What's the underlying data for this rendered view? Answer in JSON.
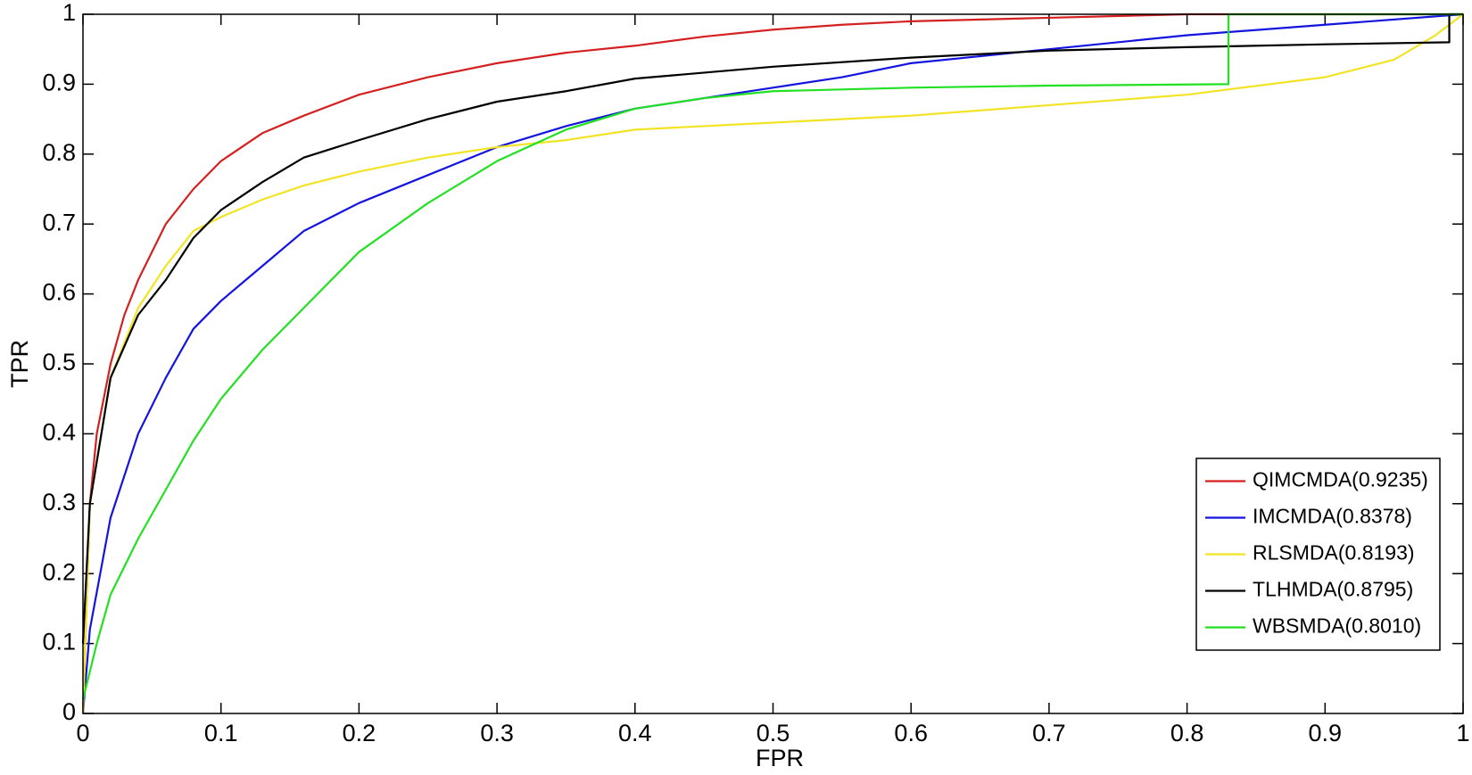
{
  "chart_data": {
    "type": "line",
    "xlabel": "FPR",
    "ylabel": "TPR",
    "xlim": [
      0,
      1
    ],
    "ylim": [
      0,
      1
    ],
    "xticks": [
      0,
      0.1,
      0.2,
      0.3,
      0.4,
      0.5,
      0.6,
      0.7,
      0.8,
      0.9,
      1
    ],
    "yticks": [
      0,
      0.1,
      0.2,
      0.3,
      0.4,
      0.5,
      0.6,
      0.7,
      0.8,
      0.9,
      1
    ],
    "grid": false,
    "legend": "lower right",
    "series": [
      {
        "name": "QIMCMDA(0.9235)",
        "color": "#d42020",
        "x": [
          0,
          0.005,
          0.01,
          0.02,
          0.03,
          0.04,
          0.06,
          0.08,
          0.1,
          0.13,
          0.16,
          0.2,
          0.25,
          0.3,
          0.35,
          0.4,
          0.45,
          0.5,
          0.55,
          0.6,
          0.7,
          0.8,
          1
        ],
        "values": [
          0,
          0.3,
          0.4,
          0.5,
          0.57,
          0.62,
          0.7,
          0.75,
          0.79,
          0.83,
          0.855,
          0.885,
          0.91,
          0.93,
          0.945,
          0.955,
          0.968,
          0.978,
          0.985,
          0.99,
          0.995,
          1,
          1
        ]
      },
      {
        "name": "IMCMDA(0.8378)",
        "color": "#1414e0",
        "x": [
          0,
          0.005,
          0.02,
          0.04,
          0.06,
          0.08,
          0.1,
          0.13,
          0.16,
          0.2,
          0.25,
          0.3,
          0.35,
          0.4,
          0.45,
          0.5,
          0.55,
          0.6,
          0.7,
          0.8,
          0.9,
          1
        ],
        "values": [
          0,
          0.12,
          0.28,
          0.4,
          0.48,
          0.55,
          0.59,
          0.64,
          0.69,
          0.73,
          0.77,
          0.81,
          0.84,
          0.865,
          0.88,
          0.895,
          0.91,
          0.93,
          0.95,
          0.97,
          0.985,
          1
        ]
      },
      {
        "name": "RLSMDA(0.8193)",
        "color": "#f2e424",
        "x": [
          0,
          0.005,
          0.02,
          0.04,
          0.06,
          0.08,
          0.1,
          0.13,
          0.16,
          0.2,
          0.25,
          0.3,
          0.35,
          0.4,
          0.5,
          0.6,
          0.7,
          0.8,
          0.9,
          0.95,
          0.98,
          1
        ],
        "values": [
          0,
          0.3,
          0.48,
          0.58,
          0.64,
          0.69,
          0.71,
          0.735,
          0.755,
          0.775,
          0.795,
          0.81,
          0.82,
          0.835,
          0.845,
          0.855,
          0.87,
          0.885,
          0.91,
          0.935,
          0.97,
          1
        ]
      },
      {
        "name": "TLHMDA(0.8795)",
        "color": "#000000",
        "x": [
          0,
          0.005,
          0.02,
          0.04,
          0.06,
          0.08,
          0.1,
          0.13,
          0.16,
          0.2,
          0.25,
          0.3,
          0.35,
          0.4,
          0.5,
          0.6,
          0.7,
          0.8,
          0.9,
          0.99,
          0.99,
          1
        ],
        "values": [
          0.1,
          0.3,
          0.48,
          0.57,
          0.62,
          0.68,
          0.72,
          0.76,
          0.795,
          0.82,
          0.85,
          0.875,
          0.89,
          0.908,
          0.925,
          0.938,
          0.948,
          0.953,
          0.957,
          0.96,
          1,
          1
        ]
      },
      {
        "name": "WBSMDA(0.8010)",
        "color": "#22e022",
        "x": [
          0,
          0.01,
          0.02,
          0.04,
          0.06,
          0.08,
          0.1,
          0.13,
          0.16,
          0.2,
          0.25,
          0.3,
          0.35,
          0.4,
          0.45,
          0.5,
          0.6,
          0.7,
          0.83,
          0.83,
          1
        ],
        "values": [
          0.02,
          0.1,
          0.17,
          0.25,
          0.32,
          0.39,
          0.45,
          0.52,
          0.58,
          0.66,
          0.73,
          0.79,
          0.835,
          0.865,
          0.88,
          0.89,
          0.895,
          0.898,
          0.9,
          1,
          1
        ]
      }
    ]
  }
}
